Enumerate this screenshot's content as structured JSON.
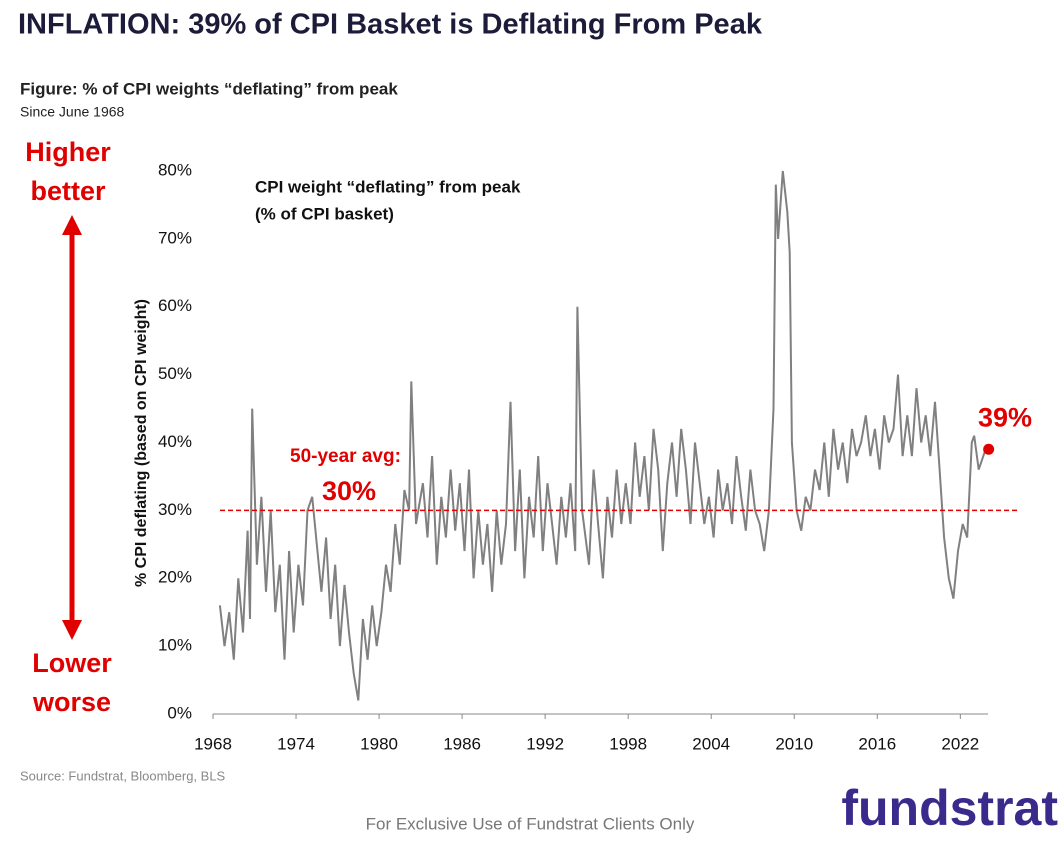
{
  "chart_data": {
    "type": "line",
    "title": "INFLATION: 39% of CPI Basket is Deflating From Peak",
    "figure_title": "Figure: % of CPI weights “deflating” from peak",
    "subtitle": "Since June 1968",
    "ylabel": "% CPI deflating (based on CPI weight)",
    "inset_label": [
      "CPI weight “deflating” from peak",
      "(% of CPI basket)"
    ],
    "side_top": [
      "Higher",
      "better"
    ],
    "side_bottom": [
      "Lower",
      "worse"
    ],
    "avg_label": "50-year avg:",
    "avg": {
      "value": 30,
      "label": "30%"
    },
    "last_label": {
      "value": 39,
      "label": "39%"
    },
    "source": "Source: Fundstrat, Bloomberg, BLS",
    "footer": "For Exclusive Use of Fundstrat Clients Only",
    "logo": "fundstrat",
    "xlim": [
      1968,
      2024
    ],
    "xticks": [
      1968,
      1974,
      1980,
      1986,
      1992,
      1998,
      2004,
      2010,
      2016,
      2022
    ],
    "ylim": [
      0,
      80
    ],
    "yticks": [
      {
        "value": 0,
        "label": "0%"
      },
      {
        "value": 10,
        "label": "10%"
      },
      {
        "value": 20,
        "label": "20%"
      },
      {
        "value": 30,
        "label": "30%"
      },
      {
        "value": 40,
        "label": "40%"
      },
      {
        "value": 50,
        "label": "50%"
      },
      {
        "value": 60,
        "label": "60%"
      },
      {
        "value": 70,
        "label": "70%"
      },
      {
        "value": 80,
        "label": "80%"
      }
    ],
    "x": [
      1968.5,
      1968.83,
      1969.17,
      1969.5,
      1969.83,
      1970.17,
      1970.5,
      1970.67,
      1970.83,
      1971.17,
      1971.5,
      1971.83,
      1972.17,
      1972.5,
      1972.83,
      1973.17,
      1973.5,
      1973.83,
      1974.17,
      1974.5,
      1974.83,
      1975.17,
      1975.5,
      1975.83,
      1976.17,
      1976.5,
      1976.83,
      1977.17,
      1977.5,
      1977.83,
      1978.17,
      1978.5,
      1978.83,
      1979.17,
      1979.5,
      1979.83,
      1980.17,
      1980.5,
      1980.83,
      1981.17,
      1981.5,
      1981.83,
      1982.17,
      1982.33,
      1982.67,
      1983.17,
      1983.5,
      1983.83,
      1984.17,
      1984.5,
      1984.83,
      1985.17,
      1985.5,
      1985.83,
      1986.17,
      1986.5,
      1986.83,
      1987.17,
      1987.5,
      1987.83,
      1988.17,
      1988.5,
      1988.83,
      1989.17,
      1989.5,
      1989.83,
      1990.17,
      1990.5,
      1990.83,
      1991.17,
      1991.5,
      1991.83,
      1992.17,
      1992.5,
      1992.83,
      1993.17,
      1993.5,
      1993.83,
      1994.17,
      1994.33,
      1994.67,
      1995.17,
      1995.5,
      1995.83,
      1996.17,
      1996.5,
      1996.83,
      1997.17,
      1997.5,
      1997.83,
      1998.17,
      1998.5,
      1998.83,
      1999.17,
      1999.5,
      1999.83,
      2000.17,
      2000.5,
      2000.83,
      2001.17,
      2001.5,
      2001.83,
      2002.17,
      2002.5,
      2002.83,
      2003.17,
      2003.5,
      2003.83,
      2004.17,
      2004.5,
      2004.83,
      2005.17,
      2005.5,
      2005.83,
      2006.17,
      2006.5,
      2006.83,
      2007.17,
      2007.5,
      2007.83,
      2008.17,
      2008.5,
      2008.67,
      2008.83,
      2009.17,
      2009.5,
      2009.67,
      2009.83,
      2010.17,
      2010.5,
      2010.83,
      2011.17,
      2011.5,
      2011.83,
      2012.17,
      2012.5,
      2012.83,
      2013.17,
      2013.5,
      2013.83,
      2014.17,
      2014.5,
      2014.83,
      2015.17,
      2015.5,
      2015.83,
      2016.17,
      2016.5,
      2016.83,
      2017.17,
      2017.5,
      2017.83,
      2018.17,
      2018.5,
      2018.83,
      2019.17,
      2019.5,
      2019.83,
      2020.17,
      2020.5,
      2020.83,
      2021.17,
      2021.5,
      2021.83,
      2022.17,
      2022.5,
      2022.83,
      2023.0,
      2023.33,
      2023.83
    ],
    "series": [
      {
        "name": "CPI weight deflating",
        "color": "#808080",
        "values": [
          16,
          10,
          15,
          8,
          20,
          12,
          27,
          14,
          45,
          22,
          32,
          18,
          30,
          15,
          22,
          8,
          24,
          12,
          22,
          16,
          30,
          32,
          25,
          18,
          26,
          14,
          22,
          10,
          19,
          12,
          6,
          2,
          14,
          8,
          16,
          10,
          15,
          22,
          18,
          28,
          22,
          33,
          30,
          49,
          28,
          34,
          26,
          38,
          22,
          32,
          26,
          36,
          27,
          34,
          24,
          36,
          20,
          30,
          22,
          28,
          18,
          30,
          22,
          28,
          46,
          24,
          36,
          20,
          32,
          26,
          38,
          24,
          34,
          28,
          22,
          32,
          26,
          34,
          24,
          60,
          30,
          22,
          36,
          28,
          20,
          32,
          26,
          36,
          28,
          34,
          28,
          40,
          32,
          38,
          30,
          42,
          36,
          24,
          34,
          40,
          32,
          42,
          36,
          28,
          40,
          34,
          28,
          32,
          26,
          36,
          30,
          34,
          28,
          38,
          32,
          27,
          36,
          30,
          28,
          24,
          30,
          45,
          78,
          70,
          80,
          74,
          68,
          40,
          30,
          27,
          32,
          30,
          36,
          33,
          40,
          32,
          42,
          36,
          40,
          34,
          42,
          38,
          40,
          44,
          38,
          42,
          36,
          44,
          40,
          42,
          50,
          38,
          44,
          38,
          48,
          40,
          44,
          38,
          46,
          36,
          26,
          20,
          17,
          24,
          28,
          26,
          40,
          41,
          36,
          39
        ]
      }
    ]
  }
}
